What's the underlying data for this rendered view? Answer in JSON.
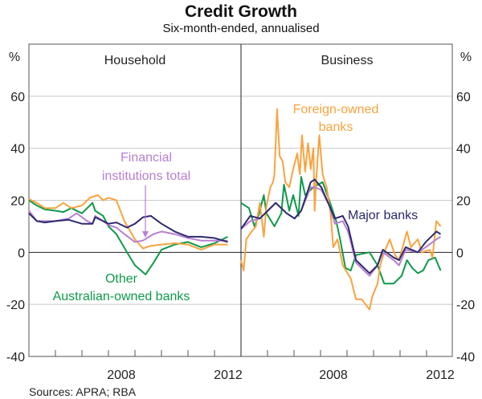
{
  "chart_data": [
    {
      "type": "line",
      "title": "Credit Growth",
      "subtitle": "Six-month-ended, annualised",
      "panel_title": "Household",
      "ylabel": "%",
      "ylim": [
        -40,
        80
      ],
      "yticks": [
        -40,
        -20,
        0,
        20,
        40,
        60
      ],
      "xlim": [
        2005,
        2013
      ],
      "xtick_labels": [
        "2008",
        "2012"
      ],
      "grid": true,
      "series": [
        {
          "name": "Other Australian-owned banks",
          "color": "#0e9a4a",
          "x": [
            2005,
            2005.3,
            2005.6,
            2006,
            2006.3,
            2006.6,
            2007,
            2007.4,
            2007.5,
            2007.8,
            2008,
            2008.3,
            2008.7,
            2009,
            2009.4,
            2009.7,
            2010,
            2010.5,
            2011,
            2011.5,
            2012,
            2012.5
          ],
          "y": [
            20,
            18,
            16.5,
            16,
            15.5,
            17,
            15,
            19,
            16,
            14,
            10,
            7,
            0,
            -5,
            -8.5,
            -4,
            1,
            3,
            4,
            2,
            3.5,
            6
          ]
        },
        {
          "name": "Foreign-owned banks",
          "color": "#f9a33f",
          "x": [
            2005,
            2005.3,
            2005.6,
            2006,
            2006.3,
            2006.6,
            2007,
            2007.3,
            2007.6,
            2007.8,
            2008,
            2008.3,
            2008.6,
            2009,
            2009.3,
            2009.6,
            2010,
            2010.5,
            2011,
            2011.5,
            2012,
            2012.5
          ],
          "y": [
            20.5,
            19,
            17,
            17,
            19,
            17,
            18,
            21,
            22,
            20,
            21,
            20,
            12,
            5,
            1.5,
            2.5,
            3,
            3.5,
            3,
            1,
            3,
            3
          ]
        },
        {
          "name": "Financial institutions total",
          "color": "#b87fcf",
          "x": [
            2005,
            2005.3,
            2006,
            2006.5,
            2006.8,
            2007.2,
            2007.4,
            2007.5,
            2007.8,
            2008,
            2008.3,
            2008.6,
            2009,
            2009.3,
            2009.7,
            2010,
            2010.5,
            2011,
            2011.5,
            2012,
            2012.5
          ],
          "y": [
            16,
            12,
            12,
            13,
            15,
            12,
            11,
            14,
            12,
            10.5,
            9.5,
            7,
            4,
            4.5,
            7,
            8,
            7,
            5.5,
            4.5,
            4.5,
            4.5
          ]
        },
        {
          "name": "Major banks",
          "color": "#2e2a6e",
          "x": [
            2005,
            2005.3,
            2005.6,
            2006,
            2006.5,
            2007,
            2007.4,
            2007.5,
            2007.8,
            2008,
            2008.3,
            2008.7,
            2009,
            2009.3,
            2009.6,
            2010,
            2010.5,
            2011,
            2011.5,
            2012,
            2012.5
          ],
          "y": [
            15,
            12,
            11.5,
            12,
            12.5,
            11,
            11,
            13.5,
            12,
            11,
            11.5,
            9.5,
            11,
            13.5,
            14,
            11,
            8,
            6,
            6,
            5.5,
            4
          ]
        }
      ],
      "annotations": {
        "financial_line1": "Financial",
        "financial_line2": "institutions total",
        "other_line1": "Other",
        "other_line2": "Australian-owned banks"
      }
    },
    {
      "type": "line",
      "panel_title": "Business",
      "ylabel": "%",
      "ylim": [
        -40,
        80
      ],
      "yticks": [
        -40,
        -20,
        0,
        20,
        40,
        60
      ],
      "xlim": [
        2005,
        2013
      ],
      "xtick_labels": [
        "2008",
        "2012"
      ],
      "grid": true,
      "series": [
        {
          "name": "Other Australian-owned banks",
          "color": "#0e9a4a",
          "x": [
            2005,
            2005.3,
            2005.51,
            2005.66,
            2005.86,
            2005.96,
            2006.26,
            2006.52,
            2006.62,
            2006.82,
            2006.97,
            2007.17,
            2007.27,
            2007.42,
            2007.73,
            2008.08,
            2008.33,
            2008.59,
            2008.74,
            2008.94,
            2009.14,
            2009.34,
            2009.85,
            2010.15,
            2010.4,
            2010.76,
            2011.06,
            2011.26,
            2011.46,
            2011.67,
            2011.87,
            2012.07,
            2012.32,
            2012.53
          ],
          "y": [
            19,
            17,
            10,
            14,
            22,
            15,
            10,
            15,
            26,
            16,
            22,
            14,
            29,
            22,
            25,
            27,
            20,
            12,
            5,
            -6,
            -7,
            -1,
            0,
            -5,
            -12,
            -12,
            -9,
            -3,
            -6,
            -8,
            -7,
            -3,
            -2,
            -7
          ]
        },
        {
          "name": "Foreign-owned banks",
          "color": "#f9a33f",
          "x": [
            2005,
            2005.1,
            2005.2,
            2005.4,
            2005.56,
            2005.71,
            2005.86,
            2005.96,
            2006.11,
            2006.21,
            2006.26,
            2006.36,
            2006.46,
            2006.57,
            2006.67,
            2006.82,
            2006.97,
            2007.12,
            2007.22,
            2007.3,
            2007.42,
            2007.53,
            2007.63,
            2007.73,
            2007.78,
            2007.83,
            2007.95,
            2008.08,
            2008.23,
            2008.38,
            2008.48,
            2008.64,
            2008.84,
            2009.14,
            2009.34,
            2009.55,
            2009.85,
            2009.95,
            2010.15,
            2010.25,
            2010.4,
            2010.61,
            2010.81,
            2010.96,
            2011.26,
            2011.41,
            2011.67,
            2011.82,
            2012.12,
            2012.22,
            2012.37,
            2012.53
          ],
          "y": [
            -3,
            -7,
            5,
            8,
            10,
            19,
            6,
            18,
            25,
            27,
            30,
            55,
            37,
            35,
            27,
            25,
            32,
            38,
            30,
            45,
            31,
            42,
            32,
            40,
            16,
            27,
            45,
            30,
            25,
            15,
            2,
            5,
            -5,
            -10,
            -18,
            -18,
            -22,
            -17,
            -12,
            -5,
            0,
            5,
            -1,
            -3,
            8,
            2,
            5,
            0,
            1,
            -2,
            12,
            10
          ]
        },
        {
          "name": "Financial institutions total",
          "color": "#b87fcf",
          "x": [
            2005,
            2005.35,
            2005.71,
            2006.01,
            2006.31,
            2006.72,
            2007.02,
            2007.27,
            2007.63,
            2007.78,
            2008.03,
            2008.33,
            2008.54,
            2008.84,
            2009.04,
            2009.34,
            2009.85,
            2010.15,
            2010.35,
            2010.76,
            2010.96,
            2011.21,
            2011.67,
            2011.97,
            2012.37,
            2012.53
          ],
          "y": [
            9,
            12,
            13,
            16,
            19,
            15,
            13,
            16,
            25,
            25,
            24,
            18,
            11,
            12,
            8,
            -4,
            -9,
            -5,
            0,
            -3,
            -5,
            1,
            0,
            2,
            5,
            6
          ]
        },
        {
          "name": "Major banks",
          "color": "#2e2a6e",
          "x": [
            2005,
            2005.35,
            2005.71,
            2006.01,
            2006.31,
            2006.72,
            2007.02,
            2007.27,
            2007.63,
            2007.78,
            2008.03,
            2008.33,
            2008.54,
            2008.84,
            2009.04,
            2009.34,
            2009.85,
            2010.15,
            2010.35,
            2010.76,
            2010.96,
            2011.21,
            2011.67,
            2011.97,
            2012.37,
            2012.53
          ],
          "y": [
            9,
            14,
            13,
            16,
            19,
            15,
            13,
            16,
            27,
            28,
            25,
            18,
            13,
            14,
            10,
            -3,
            -8,
            -5,
            1,
            -2,
            -3,
            2,
            0,
            4,
            8,
            7
          ]
        }
      ],
      "annotations": {
        "foreign_line1": "Foreign-owned",
        "foreign_line2": "banks",
        "major": "Major banks"
      }
    }
  ],
  "source": "Sources: APRA; RBA"
}
